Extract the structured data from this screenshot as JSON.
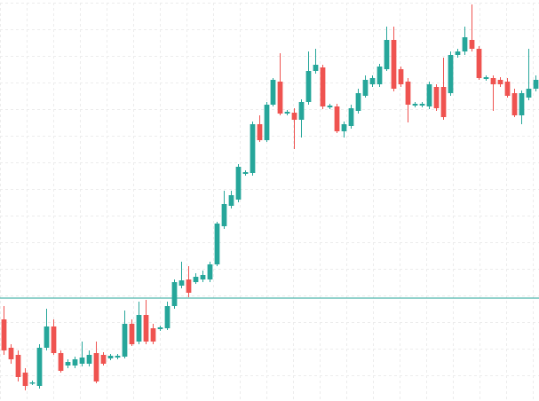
{
  "chart_data": {
    "type": "candlestick",
    "ylim": [
      0,
      452
    ],
    "grid": true,
    "up_color": "#26a69a",
    "down_color": "#ef5350",
    "reference_line": 116,
    "reference_color": "#26a69a",
    "open": [
      92,
      60,
      52,
      32,
      20,
      17,
      60,
      84,
      54,
      40,
      40,
      42,
      42,
      54,
      52,
      48,
      49,
      50,
      87,
      67,
      97,
      82,
      81,
      82,
      107,
      130,
      137,
      134,
      137,
      137,
      154,
      197,
      220,
      227,
      256,
      257,
      312,
      294,
      334,
      360,
      324,
      325,
      317,
      337,
      372,
      376,
      331,
      332,
      304,
      310,
      327,
      344,
      357,
      357,
      374,
      407,
      374,
      360,
      333,
      333,
      332,
      354,
      354,
      347,
      390,
      394,
      407,
      397,
      363,
      364,
      362,
      360,
      347,
      322,
      342,
      352
    ],
    "high": [
      107,
      64,
      57,
      37,
      23,
      64,
      104,
      92,
      57,
      47,
      50,
      67,
      57,
      67,
      55,
      53,
      53,
      102,
      92,
      112,
      114,
      87,
      85,
      112,
      137,
      157,
      152,
      144,
      147,
      157,
      202,
      237,
      237,
      267,
      260,
      315,
      322,
      337,
      364,
      392,
      328,
      330,
      340,
      394,
      397,
      379,
      335,
      335,
      315,
      334,
      352,
      367,
      367,
      380,
      422,
      422,
      377,
      364,
      337,
      337,
      360,
      357,
      387,
      394,
      397,
      422,
      447,
      400,
      367,
      367,
      365,
      364,
      352,
      350,
      397,
      367
    ],
    "low": [
      52,
      42,
      22,
      12,
      18,
      14,
      57,
      52,
      32,
      37,
      37,
      39,
      39,
      20,
      40,
      46,
      47,
      48,
      62,
      64,
      64,
      64,
      79,
      80,
      104,
      127,
      117,
      132,
      134,
      134,
      152,
      194,
      217,
      224,
      254,
      254,
      292,
      292,
      332,
      322,
      322,
      284,
      297,
      334,
      369,
      329,
      329,
      302,
      297,
      307,
      324,
      342,
      354,
      354,
      372,
      349,
      354,
      314,
      331,
      331,
      329,
      327,
      317,
      344,
      387,
      390,
      394,
      362,
      361,
      327,
      354,
      342,
      320,
      312,
      339,
      349
    ],
    "close": [
      57,
      47,
      27,
      17,
      21,
      60,
      84,
      54,
      34,
      44,
      47,
      49,
      52,
      22,
      42,
      51,
      51,
      87,
      64,
      97,
      67,
      67,
      83,
      107,
      134,
      136,
      122,
      140,
      142,
      154,
      200,
      222,
      232,
      264,
      258,
      312,
      294,
      334,
      362,
      324,
      326,
      317,
      337,
      372,
      379,
      332,
      333,
      304,
      312,
      330,
      347,
      362,
      364,
      377,
      407,
      352,
      357,
      334,
      335,
      335,
      357,
      330,
      320,
      390,
      394,
      410,
      397,
      364,
      365,
      357,
      357,
      344,
      322,
      347,
      352,
      362
    ]
  }
}
